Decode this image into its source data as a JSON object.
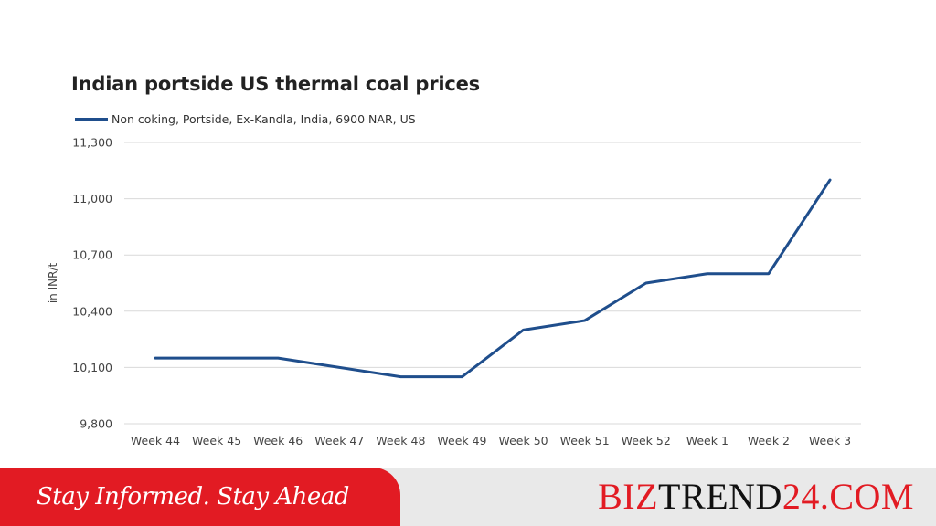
{
  "colors": {
    "series": "#1f4e8c",
    "grid": "#d9d9d9",
    "accent": "#e21b23",
    "brand_dark": "#111111"
  },
  "chart_data": {
    "type": "line",
    "title": "Indian portside US thermal coal prices",
    "ylabel": "in INR/t",
    "xlabel": "",
    "categories": [
      "Week 44",
      "Week 45",
      "Week 46",
      "Week 47",
      "Week 48",
      "Week 49",
      "Week 50",
      "Week 51",
      "Week 52",
      "Week 1",
      "Week 2",
      "Week 3"
    ],
    "series": [
      {
        "name": "Non coking, Portside, Ex-Kandla, India, 6900 NAR, US",
        "values": [
          10150,
          10150,
          10150,
          10100,
          10050,
          10050,
          10300,
          10350,
          10550,
          10600,
          10600,
          11100
        ]
      }
    ],
    "ylim": [
      9800,
      11300
    ],
    "yticks": [
      9800,
      10100,
      10400,
      10700,
      11000,
      11300
    ],
    "ytick_labels": [
      "9,800",
      "10,100",
      "10,400",
      "10,700",
      "11,000",
      "11,300"
    ],
    "grid": true,
    "legend": "top-left"
  },
  "footer": {
    "slogan": "Stay Informed. Stay Ahead",
    "brand_part1": "BIZ",
    "brand_part2": "TREND",
    "brand_part3": "24.COM"
  }
}
